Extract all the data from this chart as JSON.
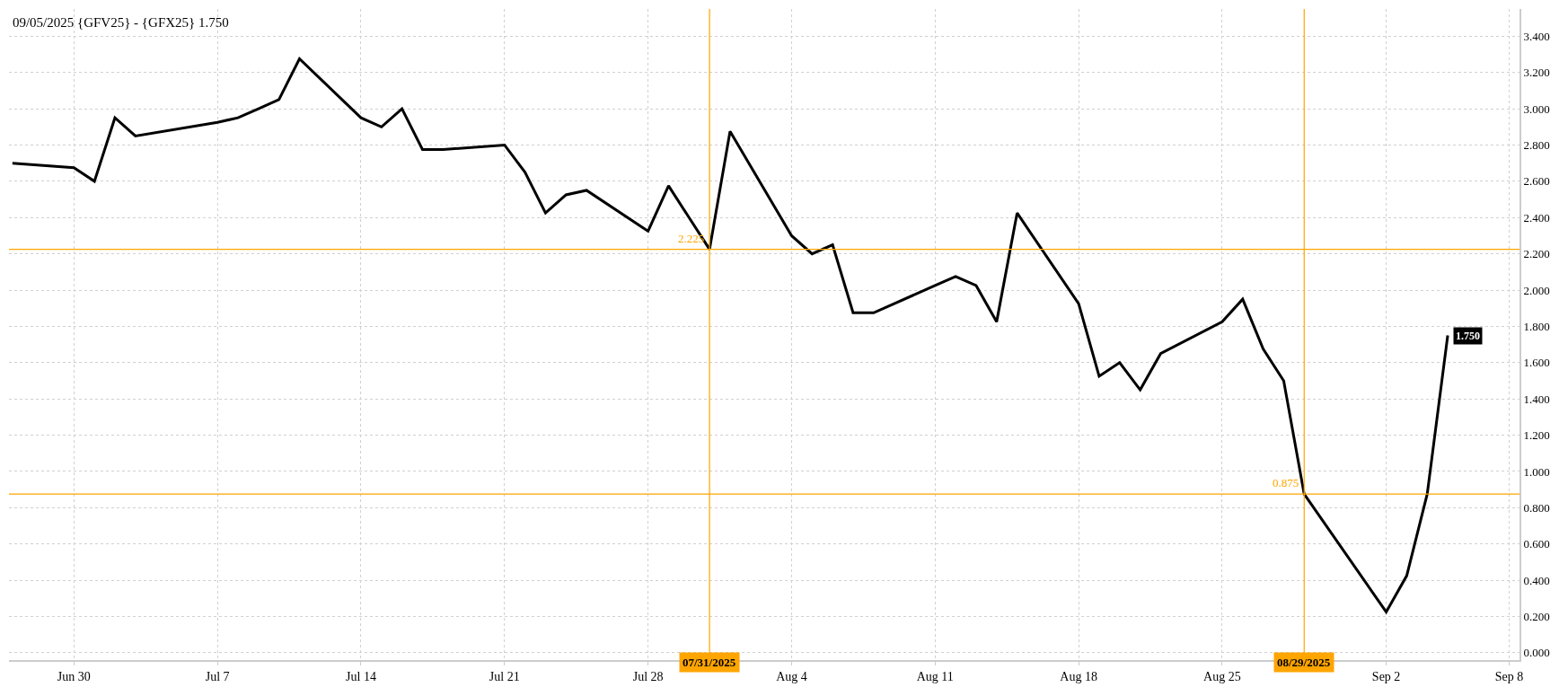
{
  "chart_data": {
    "type": "line",
    "title": "09/05/2025 {GFV25} - {GFX25} 1.750",
    "x": [
      "2025-06-27",
      "2025-06-30",
      "2025-07-01",
      "2025-07-02",
      "2025-07-03",
      "2025-07-07",
      "2025-07-08",
      "2025-07-09",
      "2025-07-10",
      "2025-07-11",
      "2025-07-14",
      "2025-07-15",
      "2025-07-16",
      "2025-07-17",
      "2025-07-18",
      "2025-07-21",
      "2025-07-22",
      "2025-07-23",
      "2025-07-24",
      "2025-07-25",
      "2025-07-28",
      "2025-07-29",
      "2025-07-30",
      "2025-07-31",
      "2025-08-01",
      "2025-08-04",
      "2025-08-05",
      "2025-08-06",
      "2025-08-07",
      "2025-08-08",
      "2025-08-11",
      "2025-08-12",
      "2025-08-13",
      "2025-08-14",
      "2025-08-15",
      "2025-08-18",
      "2025-08-19",
      "2025-08-20",
      "2025-08-21",
      "2025-08-22",
      "2025-08-25",
      "2025-08-26",
      "2025-08-27",
      "2025-08-28",
      "2025-08-29",
      "2025-09-02",
      "2025-09-03",
      "2025-09-04",
      "2025-09-05"
    ],
    "series": [
      {
        "color": "#000000",
        "values": [
          2.7,
          2.675,
          2.6,
          2.95,
          2.85,
          2.925,
          2.95,
          3.0,
          3.05,
          3.275,
          2.95,
          2.9,
          3.0,
          2.775,
          2.775,
          2.8,
          2.65,
          2.425,
          2.525,
          2.55,
          2.325,
          2.575,
          2.4,
          2.225,
          2.875,
          2.3,
          2.2,
          2.25,
          1.875,
          1.875,
          2.025,
          2.075,
          2.025,
          1.825,
          2.425,
          1.925,
          1.525,
          1.6,
          1.45,
          1.65,
          1.825,
          1.95,
          1.675,
          1.5,
          0.875,
          0.225,
          0.425,
          0.875,
          1.75
        ],
        "value_labels": [
          null,
          null,
          null,
          null,
          null,
          null,
          null,
          null,
          null,
          null,
          null,
          null,
          null,
          null,
          null,
          null,
          null,
          null,
          null,
          null,
          null,
          null,
          null,
          null,
          null,
          null,
          null,
          null,
          null,
          null,
          null,
          null,
          null,
          null,
          null,
          null,
          null,
          null,
          null,
          null,
          null,
          null,
          null,
          null,
          null,
          null,
          null,
          null,
          "1.750"
        ]
      }
    ],
    "xlim": [
      "2025-06-26T20:00",
      "2025-09-08T12:00"
    ],
    "xticks": [
      {
        "value": "2025-06-30",
        "label": "Jun 30"
      },
      {
        "value": "2025-07-07",
        "label": "Jul 7"
      },
      {
        "value": "2025-07-14",
        "label": "Jul 14"
      },
      {
        "value": "2025-07-21",
        "label": "Jul 21"
      },
      {
        "value": "2025-07-28",
        "label": "Jul 28"
      },
      {
        "value": "2025-08-04",
        "label": "Aug 4"
      },
      {
        "value": "2025-08-11",
        "label": "Aug 11"
      },
      {
        "value": "2025-08-18",
        "label": "Aug 18"
      },
      {
        "value": "2025-08-25",
        "label": "Aug 25"
      },
      {
        "value": "2025-09-02",
        "label": "Sep 2"
      },
      {
        "value": "2025-09-08",
        "label": "Sep 8"
      }
    ],
    "ylim": [
      -0.04,
      3.55
    ],
    "yticks": [
      {
        "value": 0,
        "label": "0.000"
      },
      {
        "value": 0.2,
        "label": "0.200"
      },
      {
        "value": 0.4,
        "label": "0.400"
      },
      {
        "value": 0.6,
        "label": "0.600"
      },
      {
        "value": 0.8,
        "label": "0.800"
      },
      {
        "value": 1.0,
        "label": "1.000"
      },
      {
        "value": 1.2,
        "label": "1.200"
      },
      {
        "value": 1.4,
        "label": "1.400"
      },
      {
        "value": 1.6,
        "label": "1.600"
      },
      {
        "value": 1.8,
        "label": "1.800"
      },
      {
        "value": 2.0,
        "label": "2.000"
      },
      {
        "value": 2.2,
        "label": "2.200"
      },
      {
        "value": 2.4,
        "label": "2.400"
      },
      {
        "value": 2.6,
        "label": "2.600"
      },
      {
        "value": 2.8,
        "label": "2.800"
      },
      {
        "value": 3.0,
        "label": "3.000"
      },
      {
        "value": 3.2,
        "label": "3.200"
      },
      {
        "value": 3.4,
        "label": "3.400"
      }
    ],
    "ref_lines": [
      {
        "axis": "x",
        "value": "2025-07-31",
        "label": "07/31/2025",
        "color": "#ffa500"
      },
      {
        "axis": "x",
        "value": "2025-08-29",
        "label": "08/29/2025",
        "color": "#ffa500"
      },
      {
        "axis": "y",
        "value": 2.225,
        "label": "2.225",
        "color": "#ffa500"
      },
      {
        "axis": "y",
        "value": 0.875,
        "label": "0.875",
        "color": "#ffa500"
      }
    ],
    "grid": true,
    "legend": false,
    "marker": "none",
    "line_style": "solid"
  }
}
